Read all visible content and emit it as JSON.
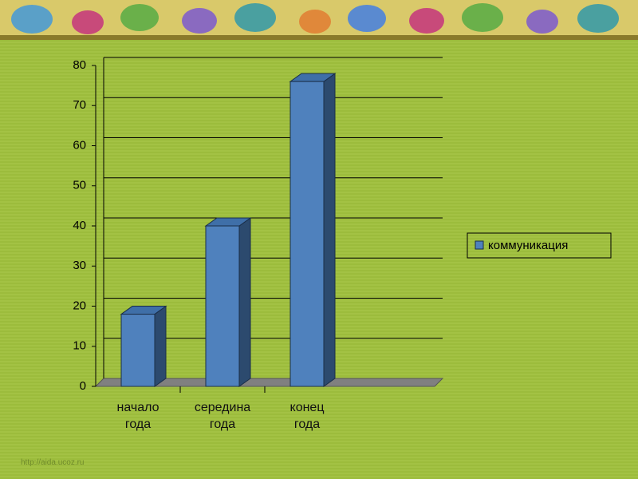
{
  "chart_data": {
    "type": "bar3d",
    "categories": [
      "начало года",
      "середина года",
      "конец года"
    ],
    "series": [
      {
        "name": "коммуникация",
        "color": "#4f81bd",
        "values": [
          18,
          40,
          76
        ]
      }
    ],
    "ylim": [
      0,
      80
    ],
    "yticks": [
      0,
      10,
      20,
      30,
      40,
      50,
      60,
      70,
      80
    ],
    "grid": true,
    "legend": "right"
  },
  "footer": "http://aida.ucoz.ru"
}
